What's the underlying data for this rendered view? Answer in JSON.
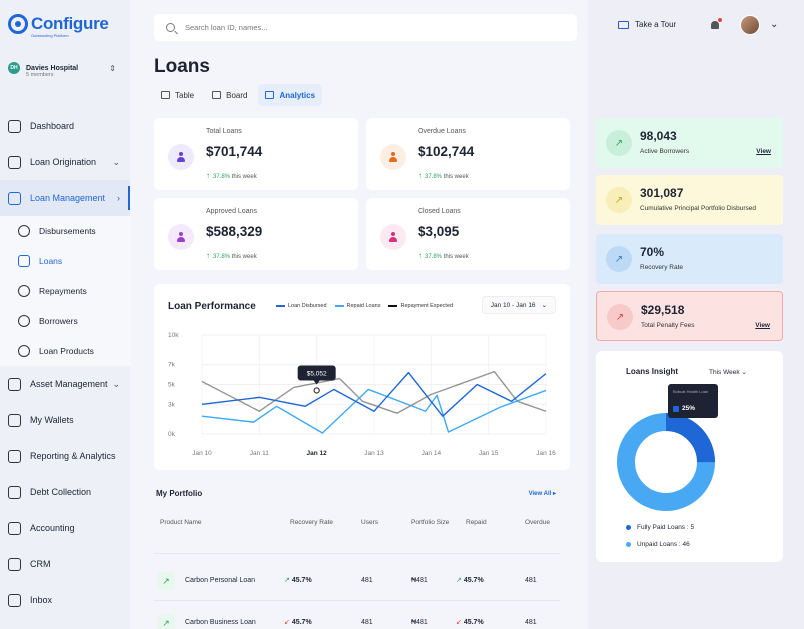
{
  "brand": {
    "name": "Configure",
    "tag": "Outstanding Platform"
  },
  "org": {
    "initials": "DH",
    "name": "Davies Hospital",
    "members": "5 members"
  },
  "nav": {
    "dashboard": "Dashboard",
    "loan_origination": "Loan Origination",
    "loan_management": "Loan Management",
    "sub": [
      "Disbursements",
      "Loans",
      "Repayments",
      "Borrowers",
      "Loan Products"
    ],
    "asset_management": "Asset Management",
    "my_wallets": "My Wallets",
    "reporting": "Reporting & Analytics",
    "debt_collection": "Debt Collection",
    "accounting": "Accounting",
    "crm": "CRM",
    "inbox": "Inbox"
  },
  "search": {
    "placeholder": "Search loan ID, names..."
  },
  "page_title": "Loans",
  "tabs": [
    "Table",
    "Board",
    "Analytics"
  ],
  "stats": [
    {
      "label": "Total Loans",
      "value": "$701,744",
      "pct": "37.8%",
      "suffix": " this week",
      "color": "#6a3fd1",
      "bg": "#efeafc"
    },
    {
      "label": "Overdue Loans",
      "value": "$102,744",
      "pct": "37.8%",
      "suffix": " this week",
      "color": "#e26c1c",
      "bg": "#fdeee3"
    },
    {
      "label": "Approved Loans",
      "value": "$588,329",
      "pct": "37.8%",
      "suffix": " this week",
      "color": "#9b3fd1",
      "bg": "#f4eafc"
    },
    {
      "label": "Closed Loans",
      "value": "$3,095",
      "pct": "37.8%",
      "suffix": " this week",
      "color": "#d6317a",
      "bg": "#fde9f1"
    }
  ],
  "chart_data": {
    "type": "line",
    "title": "Loan Performance",
    "range": "Jan 10 - Jan 16",
    "categories": [
      "Jan 10",
      "Jan 11",
      "Jan 12",
      "Jan 13",
      "Jan 14",
      "Jan 15",
      "Jan 16"
    ],
    "ylim": [
      0,
      10000
    ],
    "yticks": [
      "10k",
      "7k",
      "5k",
      "3k",
      "0k"
    ],
    "tooltip": "$5,052",
    "series": [
      {
        "name": "Loan Disbursed",
        "color": "#1f66d6",
        "values": [
          [
            0,
            3000
          ],
          [
            1,
            3700
          ],
          [
            1.8,
            2800
          ],
          [
            2.3,
            4500
          ],
          [
            3,
            2300
          ],
          [
            3.6,
            6200
          ],
          [
            4.2,
            1800
          ],
          [
            4.8,
            5000
          ],
          [
            5.4,
            3300
          ],
          [
            6,
            6100
          ]
        ]
      },
      {
        "name": "Repaid Loans",
        "color": "#3fa9f5",
        "values": [
          [
            0,
            1800
          ],
          [
            0.9,
            1200
          ],
          [
            1.3,
            2800
          ],
          [
            2.1,
            100
          ],
          [
            2.9,
            4500
          ],
          [
            3.9,
            2300
          ],
          [
            4.1,
            3900
          ],
          [
            4.3,
            200
          ],
          [
            5.2,
            2700
          ],
          [
            6,
            4400
          ]
        ]
      },
      {
        "name": "Repayment Expected",
        "color": "#111111",
        "values": [
          [
            0,
            5300
          ],
          [
            1,
            2300
          ],
          [
            1.6,
            4700
          ],
          [
            2.4,
            5600
          ],
          [
            2.8,
            3300
          ],
          [
            3.4,
            2100
          ],
          [
            4,
            4000
          ],
          [
            5.1,
            6300
          ],
          [
            5.5,
            3300
          ],
          [
            6,
            2300
          ]
        ]
      }
    ],
    "marker": [
      2,
      4400
    ]
  },
  "portfolio": {
    "title": "My Portfolio",
    "view_all": "View All",
    "columns": [
      "Product Name",
      "Recovery Rate",
      "Users",
      "Portfolio Size",
      "Repaid",
      "Overdue"
    ],
    "rows": [
      {
        "name": "Carbon Personal Loan",
        "recovery": "45.7%",
        "users": "481",
        "size": "₦481",
        "repaid": "45.7%",
        "overdue": "481",
        "trend": "up"
      },
      {
        "name": "Carbon Business Loan",
        "recovery": "45.7%",
        "users": "481",
        "size": "₦481",
        "repaid": "45.7%",
        "overdue": "481",
        "trend": "down"
      }
    ]
  },
  "topbar": {
    "tour": "Take a Tour"
  },
  "kpis": [
    {
      "value": "98,043",
      "label": "Active Borrowers",
      "view": "View",
      "bg": "#e2faee",
      "icbg": "#c9efdb",
      "ic": "#27a55a"
    },
    {
      "value": "301,087",
      "label": "Cumulative Principal Portfolio Disbursed",
      "view": "",
      "bg": "#fdf8d9",
      "icbg": "#f7eeb8",
      "ic": "#c9a21a"
    },
    {
      "value": "70%",
      "label": "Recovery Rate",
      "view": "",
      "bg": "#d9ebfb",
      "icbg": "#bcd9f5",
      "ic": "#2d7ec9"
    },
    {
      "value": "$29,518",
      "label": "Total Penalty Fees",
      "view": "View",
      "bg": "#fde2e2",
      "icbg": "#f8c9c9",
      "ic": "#d14343",
      "border": "#f1aaaa"
    }
  ],
  "insight": {
    "title": "Loans Insight",
    "period": "This Week",
    "tooltip_label": "Bobcat Health Loan",
    "tooltip_value": "25%",
    "fully_paid": "Fully Paid Loans : 5",
    "unpaid": "Unpaid Loans : 46",
    "fully_paid_fraction": 0.25,
    "colors": {
      "fully_paid": "#1f66d6",
      "unpaid": "#49a8f3"
    }
  }
}
